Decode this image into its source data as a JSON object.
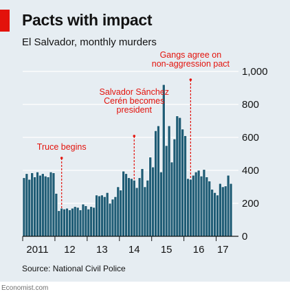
{
  "header": {
    "title": "Pacts with impact",
    "subtitle": "El Salvador, monthly murders"
  },
  "source": "Source: National Civil Police",
  "credit": "Economist.com",
  "colors": {
    "bar": "#1f5c75",
    "bar_edge": "#ffffff",
    "grid": "#ffffff",
    "annotation": "#e3120b",
    "background": "#e6edf2",
    "text": "#121212"
  },
  "chart_data": {
    "type": "bar",
    "title": "Pacts with impact",
    "subtitle": "El Salvador, monthly murders",
    "x": [
      "2011-01",
      "2011-02",
      "2011-03",
      "2011-04",
      "2011-05",
      "2011-06",
      "2011-07",
      "2011-08",
      "2011-09",
      "2011-10",
      "2011-11",
      "2011-12",
      "2012-01",
      "2012-02",
      "2012-03",
      "2012-04",
      "2012-05",
      "2012-06",
      "2012-07",
      "2012-08",
      "2012-09",
      "2012-10",
      "2012-11",
      "2012-12",
      "2013-01",
      "2013-02",
      "2013-03",
      "2013-04",
      "2013-05",
      "2013-06",
      "2013-07",
      "2013-08",
      "2013-09",
      "2013-10",
      "2013-11",
      "2013-12",
      "2014-01",
      "2014-02",
      "2014-03",
      "2014-04",
      "2014-05",
      "2014-06",
      "2014-07",
      "2014-08",
      "2014-09",
      "2014-10",
      "2014-11",
      "2014-12",
      "2015-01",
      "2015-02",
      "2015-03",
      "2015-04",
      "2015-05",
      "2015-06",
      "2015-07",
      "2015-08",
      "2015-09",
      "2015-10",
      "2015-11",
      "2015-12",
      "2016-01",
      "2016-02",
      "2016-03",
      "2016-04",
      "2016-05",
      "2016-06",
      "2016-07",
      "2016-08",
      "2016-09",
      "2016-10",
      "2016-11",
      "2016-12",
      "2017-01",
      "2017-02",
      "2017-03",
      "2017-04",
      "2017-05",
      "2017-06"
    ],
    "values": [
      355,
      380,
      345,
      385,
      360,
      390,
      370,
      380,
      365,
      360,
      390,
      385,
      260,
      155,
      170,
      165,
      170,
      160,
      170,
      180,
      175,
      160,
      195,
      185,
      165,
      180,
      175,
      250,
      245,
      250,
      240,
      265,
      200,
      225,
      240,
      300,
      280,
      395,
      380,
      355,
      350,
      340,
      295,
      355,
      410,
      300,
      340,
      480,
      420,
      640,
      670,
      390,
      920,
      550,
      670,
      450,
      590,
      730,
      720,
      650,
      610,
      350,
      345,
      370,
      390,
      400,
      365,
      405,
      360,
      335,
      285,
      265,
      250,
      320,
      300,
      305,
      370,
      320
    ],
    "ylim": [
      0,
      1000
    ],
    "yticks": [
      0,
      200,
      400,
      600,
      800,
      1000
    ],
    "ytick_labels": [
      "0",
      "200",
      "400",
      "600",
      "800",
      "1,000"
    ],
    "xtick_labels": [
      {
        "label": "2011",
        "x": "2011-06"
      },
      {
        "label": "12",
        "x": "2012-06"
      },
      {
        "label": "13",
        "x": "2013-06"
      },
      {
        "label": "14",
        "x": "2014-06"
      },
      {
        "label": "15",
        "x": "2015-06"
      },
      {
        "label": "16",
        "x": "2016-06"
      },
      {
        "label": "17",
        "x": "2017-03"
      }
    ],
    "annotations": [
      {
        "lines": [
          "Truce begins"
        ],
        "x": "2012-03"
      },
      {
        "lines": [
          "Salvador Sánchez",
          "Cerén becomes",
          "president"
        ],
        "x": "2014-06"
      },
      {
        "lines": [
          "Gangs agree on",
          "non-aggression pact"
        ],
        "x": "2016-03"
      }
    ],
    "grid": true,
    "axis_side": "right",
    "xlabel": "",
    "ylabel": ""
  }
}
